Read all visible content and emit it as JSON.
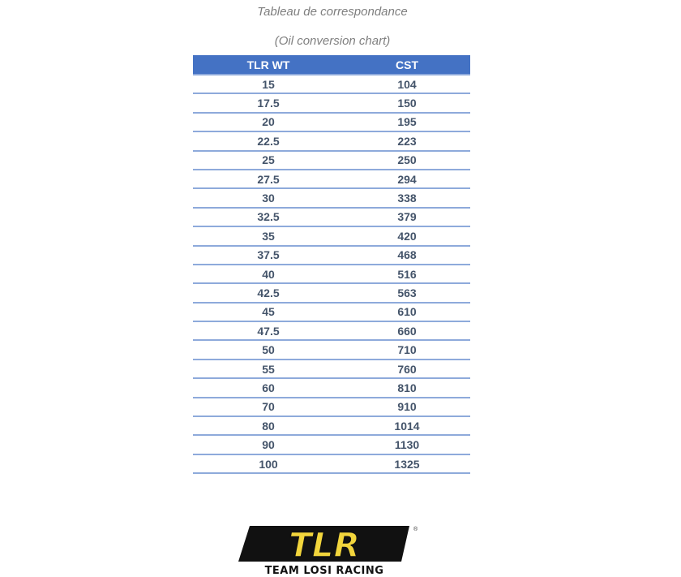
{
  "title": "Tableau de correspondance",
  "subtitle": "(Oil conversion chart)",
  "table": {
    "headers": [
      "TLR WT",
      "CST"
    ],
    "rows": [
      [
        "15",
        "104"
      ],
      [
        "17.5",
        "150"
      ],
      [
        "20",
        "195"
      ],
      [
        "22.5",
        "223"
      ],
      [
        "25",
        "250"
      ],
      [
        "27.5",
        "294"
      ],
      [
        "30",
        "338"
      ],
      [
        "32.5",
        "379"
      ],
      [
        "35",
        "420"
      ],
      [
        "37.5",
        "468"
      ],
      [
        "40",
        "516"
      ],
      [
        "42.5",
        "563"
      ],
      [
        "45",
        "610"
      ],
      [
        "47.5",
        "660"
      ],
      [
        "50",
        "710"
      ],
      [
        "55",
        "760"
      ],
      [
        "60",
        "810"
      ],
      [
        "70",
        "910"
      ],
      [
        "80",
        "1014"
      ],
      [
        "90",
        "1130"
      ],
      [
        "100",
        "1325"
      ]
    ]
  },
  "logo": {
    "mark": "TLR",
    "tagline": "TEAM LOSI RACING",
    "registered": "®"
  },
  "colors": {
    "header_bg": "#4472c4",
    "row_text": "#44546a",
    "rule": "#8eaadb",
    "logo_yellow": "#f2d53c"
  }
}
